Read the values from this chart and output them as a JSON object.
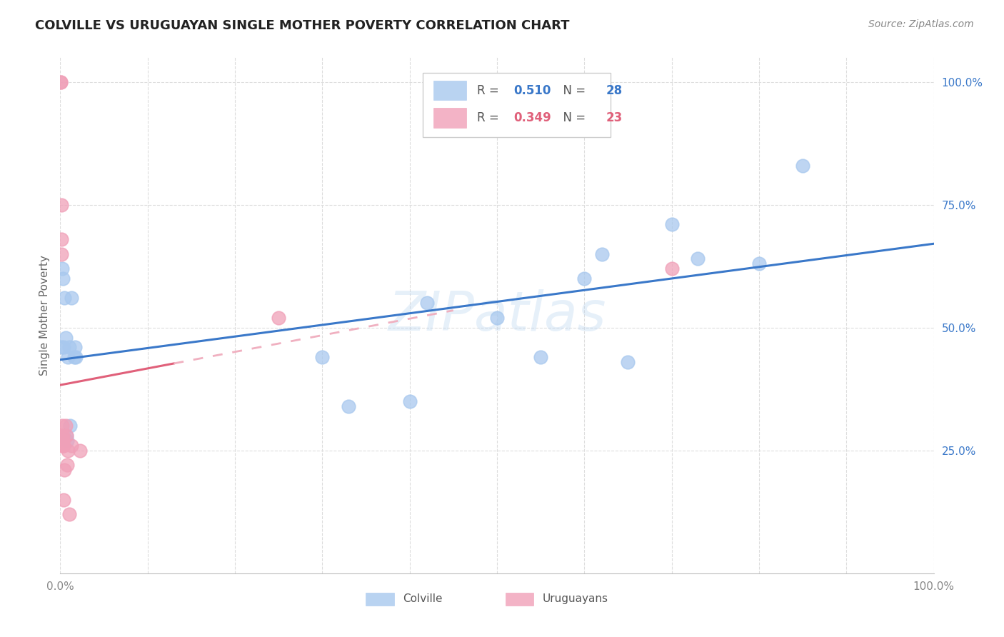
{
  "title": "COLVILLE VS URUGUAYAN SINGLE MOTHER POVERTY CORRELATION CHART",
  "source": "Source: ZipAtlas.com",
  "ylabel": "Single Mother Poverty",
  "watermark": "ZIPatlas",
  "colville_R": 0.51,
  "colville_N": 28,
  "uruguayan_R": 0.349,
  "uruguayan_N": 23,
  "colville_color": "#A8C8EE",
  "uruguayan_color": "#F0A0B8",
  "colville_line_color": "#3A78C9",
  "uruguayan_line_color": "#E0607A",
  "uruguayan_line_dash_color": "#F0B0C0",
  "background_color": "#FFFFFF",
  "grid_color": "#DDDDDD",
  "colville_x": [
    0.001,
    0.002,
    0.003,
    0.004,
    0.005,
    0.006,
    0.007,
    0.008,
    0.009,
    0.01,
    0.011,
    0.013,
    0.016,
    0.017,
    0.018,
    0.3,
    0.33,
    0.4,
    0.42,
    0.5,
    0.55,
    0.6,
    0.62,
    0.65,
    0.7,
    0.73,
    0.8,
    0.85
  ],
  "colville_y": [
    0.46,
    0.62,
    0.6,
    0.46,
    0.56,
    0.48,
    0.28,
    0.27,
    0.44,
    0.46,
    0.3,
    0.56,
    0.44,
    0.46,
    0.44,
    0.44,
    0.34,
    0.35,
    0.55,
    0.52,
    0.44,
    0.6,
    0.65,
    0.43,
    0.71,
    0.64,
    0.63,
    0.83
  ],
  "uruguayan_x": [
    0.0005,
    0.0007,
    0.001,
    0.001,
    0.0015,
    0.002,
    0.002,
    0.002,
    0.003,
    0.003,
    0.003,
    0.004,
    0.004,
    0.005,
    0.006,
    0.007,
    0.008,
    0.009,
    0.01,
    0.013,
    0.023,
    0.25,
    0.7
  ],
  "uruguayan_y": [
    1.0,
    1.0,
    0.75,
    0.68,
    0.65,
    0.3,
    0.28,
    0.26,
    0.28,
    0.27,
    0.26,
    0.26,
    0.15,
    0.21,
    0.3,
    0.28,
    0.22,
    0.25,
    0.12,
    0.26,
    0.25,
    0.52,
    0.62
  ],
  "xmin": 0.0,
  "xmax": 1.0,
  "ymin": 0.0,
  "ymax": 1.05,
  "ytick_values": [
    0.25,
    0.5,
    0.75,
    1.0
  ],
  "ytick_labels": [
    "25.0%",
    "50.0%",
    "75.0%",
    "100.0%"
  ]
}
